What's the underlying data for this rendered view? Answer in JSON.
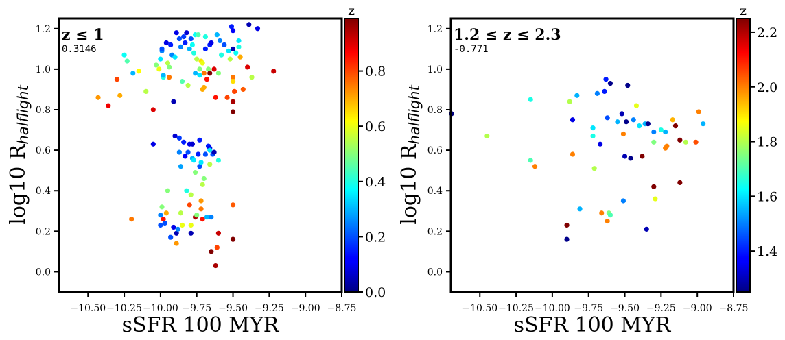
{
  "charts": [
    {
      "type": "scatter",
      "title": "z ≤ 1",
      "annotation": "0.3146",
      "xlabel": "sSFR 100 MYR",
      "ylabel_main": "log10 R",
      "ylabel_sub": "halflight",
      "xlim": [
        -10.7,
        -8.75
      ],
      "ylim": [
        -0.1,
        1.25
      ],
      "xticks": [
        -10.5,
        -10.25,
        -10.0,
        -9.75,
        -9.5,
        -9.25,
        -9.0,
        -8.75
      ],
      "xtick_labels": [
        "−10.50",
        "−10.25",
        "−10.00",
        "−9.75",
        "−9.50",
        "−9.25",
        "−9.00",
        "−8.75"
      ],
      "yticks": [
        0.0,
        0.2,
        0.4,
        0.6,
        0.8,
        1.0,
        1.2
      ],
      "ytick_labels": [
        "0.0",
        "0.2",
        "0.4",
        "0.6",
        "0.8",
        "1.0",
        "1.2"
      ],
      "colorbar": {
        "label": "z",
        "colormap": "jet",
        "range": [
          0.0,
          0.99
        ],
        "ticks": [
          0.0,
          0.2,
          0.4,
          0.6,
          0.8
        ],
        "tick_labels": [
          "0.0",
          "0.2",
          "0.4",
          "0.6",
          "0.8"
        ]
      },
      "points": [
        [
          -10.43,
          0.86,
          0.72
        ],
        [
          -10.36,
          0.82,
          0.88
        ],
        [
          -10.3,
          0.95,
          0.8
        ],
        [
          -10.28,
          0.87,
          0.7
        ],
        [
          -10.25,
          1.07,
          0.38
        ],
        [
          -10.23,
          1.04,
          0.45
        ],
        [
          -10.19,
          0.98,
          0.3
        ],
        [
          -10.15,
          0.99,
          0.62
        ],
        [
          -10.1,
          0.89,
          0.55
        ],
        [
          -10.05,
          0.8,
          0.9
        ],
        [
          -10.03,
          1.02,
          0.5
        ],
        [
          -10.01,
          1.0,
          0.6
        ],
        [
          -10.0,
          1.05,
          0.35
        ],
        [
          -9.99,
          1.09,
          0.25
        ],
        [
          -9.99,
          1.1,
          0.2
        ],
        [
          -9.98,
          0.96,
          0.4
        ],
        [
          -9.98,
          0.97,
          0.3
        ],
        [
          -9.96,
          1.13,
          0.1
        ],
        [
          -9.95,
          1.03,
          0.55
        ],
        [
          -9.94,
          1.01,
          0.5
        ],
        [
          -9.94,
          0.96,
          0.75
        ],
        [
          -9.93,
          1.12,
          0.15
        ],
        [
          -9.92,
          1.07,
          0.25
        ],
        [
          -9.91,
          0.84,
          0.05
        ],
        [
          -9.9,
          1.06,
          0.35
        ],
        [
          -9.89,
          1.18,
          0.1
        ],
        [
          -9.87,
          1.15,
          0.2
        ],
        [
          -9.86,
          1.11,
          0.25
        ],
        [
          -9.85,
          0.94,
          0.45
        ],
        [
          -9.84,
          1.16,
          0.18
        ],
        [
          -9.83,
          1.13,
          0.15
        ],
        [
          -9.82,
          1.18,
          0.08
        ],
        [
          -9.81,
          0.92,
          0.55
        ],
        [
          -9.8,
          1.1,
          0.3
        ],
        [
          -9.79,
          1.15,
          0.2
        ],
        [
          -9.78,
          1.12,
          0.38
        ],
        [
          -9.77,
          1.08,
          0.4
        ],
        [
          -9.76,
          1.17,
          0.38
        ],
        [
          -9.76,
          0.98,
          0.3
        ],
        [
          -9.75,
          1.05,
          0.55
        ],
        [
          -9.74,
          1.17,
          0.45
        ],
        [
          -9.73,
          1.0,
          0.5
        ],
        [
          -9.73,
          0.97,
          0.35
        ],
        [
          -9.72,
          1.04,
          0.65
        ],
        [
          -9.71,
          1.03,
          0.6
        ],
        [
          -9.71,
          0.9,
          0.7
        ],
        [
          -9.7,
          0.98,
          0.75
        ],
        [
          -9.7,
          0.91,
          0.7
        ],
        [
          -9.69,
          1.1,
          0.15
        ],
        [
          -9.69,
          1.16,
          0.4
        ],
        [
          -9.68,
          0.95,
          0.85
        ],
        [
          -9.67,
          1.0,
          0.5
        ],
        [
          -9.66,
          1.12,
          0.15
        ],
        [
          -9.66,
          0.98,
          0.99
        ],
        [
          -9.65,
          1.13,
          0.1
        ],
        [
          -9.63,
          1.0,
          0.9
        ],
        [
          -9.62,
          0.86,
          0.85
        ],
        [
          -9.61,
          1.17,
          0.3
        ],
        [
          -9.6,
          0.98,
          0.5
        ],
        [
          -9.59,
          1.14,
          0.25
        ],
        [
          -9.58,
          1.07,
          0.4
        ],
        [
          -9.56,
          1.12,
          0.2
        ],
        [
          -9.54,
          0.86,
          0.8
        ],
        [
          -9.53,
          1.09,
          0.35
        ],
        [
          -9.52,
          1.05,
          0.55
        ],
        [
          -9.51,
          1.21,
          0.15
        ],
        [
          -9.5,
          1.19,
          0.12
        ],
        [
          -9.5,
          1.1,
          0.05
        ],
        [
          -9.5,
          0.96,
          0.75
        ],
        [
          -9.5,
          0.94,
          0.65
        ],
        [
          -9.5,
          0.84,
          0.95
        ],
        [
          -9.5,
          0.79,
          0.99
        ],
        [
          -9.49,
          0.89,
          0.8
        ],
        [
          -9.48,
          1.08,
          0.38
        ],
        [
          -9.46,
          1.11,
          0.4
        ],
        [
          -9.46,
          1.14,
          0.35
        ],
        [
          -9.45,
          1.06,
          0.7
        ],
        [
          -9.43,
          0.9,
          0.78
        ],
        [
          -9.4,
          1.01,
          0.9
        ],
        [
          -9.39,
          1.22,
          0.05
        ],
        [
          -9.37,
          0.96,
          0.55
        ],
        [
          -9.33,
          1.2,
          0.1
        ],
        [
          -9.22,
          0.99,
          0.92
        ],
        [
          -10.2,
          0.26,
          0.75
        ],
        [
          -10.05,
          0.63,
          0.1
        ],
        [
          -10.0,
          0.23,
          0.2
        ],
        [
          -10.0,
          0.28,
          0.25
        ],
        [
          -9.99,
          0.32,
          0.5
        ],
        [
          -9.98,
          0.26,
          0.85
        ],
        [
          -9.97,
          0.24,
          0.2
        ],
        [
          -9.96,
          0.29,
          0.7
        ],
        [
          -9.95,
          0.4,
          0.5
        ],
        [
          -9.93,
          0.17,
          0.2
        ],
        [
          -9.91,
          0.22,
          0.1
        ],
        [
          -9.9,
          0.67,
          0.08
        ],
        [
          -9.89,
          0.19,
          0.05
        ],
        [
          -9.89,
          0.14,
          0.72
        ],
        [
          -9.88,
          0.21,
          0.25
        ],
        [
          -9.87,
          0.66,
          0.18
        ],
        [
          -9.87,
          0.59,
          0.25
        ],
        [
          -9.86,
          0.52,
          0.28
        ],
        [
          -9.86,
          0.29,
          0.55
        ],
        [
          -9.85,
          0.23,
          0.6
        ],
        [
          -9.84,
          0.64,
          0.15
        ],
        [
          -9.83,
          0.57,
          0.12
        ],
        [
          -9.82,
          0.4,
          0.4
        ],
        [
          -9.81,
          0.59,
          0.2
        ],
        [
          -9.8,
          0.63,
          0.1
        ],
        [
          -9.8,
          0.33,
          0.8
        ],
        [
          -9.79,
          0.38,
          0.55
        ],
        [
          -9.79,
          0.23,
          0.6
        ],
        [
          -9.79,
          0.19,
          0.05
        ],
        [
          -9.78,
          0.63,
          0.08
        ],
        [
          -9.78,
          0.56,
          0.3
        ],
        [
          -9.77,
          0.55,
          0.35
        ],
        [
          -9.76,
          0.49,
          0.5
        ],
        [
          -9.76,
          0.27,
          0.95
        ],
        [
          -9.75,
          0.28,
          0.5
        ],
        [
          -9.74,
          0.58,
          0.15
        ],
        [
          -9.73,
          0.65,
          0.15
        ],
        [
          -9.73,
          0.52,
          0.2
        ],
        [
          -9.72,
          0.54,
          0.35
        ],
        [
          -9.72,
          0.35,
          0.72
        ],
        [
          -9.72,
          0.31,
          0.75
        ],
        [
          -9.71,
          0.26,
          0.85
        ],
        [
          -9.71,
          0.43,
          0.55
        ],
        [
          -9.7,
          0.46,
          0.5
        ],
        [
          -9.69,
          0.58,
          0.2
        ],
        [
          -9.68,
          0.27,
          0.3
        ],
        [
          -9.67,
          0.62,
          0.1
        ],
        [
          -9.67,
          0.62,
          0.15
        ],
        [
          -9.66,
          0.61,
          0.1
        ],
        [
          -9.66,
          0.53,
          0.55
        ],
        [
          -9.66,
          0.6,
          0.35
        ],
        [
          -9.65,
          0.1,
          0.99
        ],
        [
          -9.65,
          0.27,
          0.25
        ],
        [
          -9.64,
          0.58,
          0.2
        ],
        [
          -9.63,
          0.59,
          0.05
        ],
        [
          -9.62,
          0.03,
          0.95
        ],
        [
          -9.61,
          0.12,
          0.8
        ],
        [
          -9.6,
          0.19,
          0.92
        ],
        [
          -9.6,
          0.55,
          0.4
        ],
        [
          -9.5,
          0.33,
          0.78
        ],
        [
          -9.5,
          0.16,
          0.99
        ]
      ]
    },
    {
      "type": "scatter",
      "title": "1.2 ≤ z ≤ 2.3",
      "annotation": "-0.771",
      "xlabel": "sSFR 100 MYR",
      "ylabel_main": "log10 R",
      "ylabel_sub": "halflight",
      "xlim": [
        -10.7,
        -8.75
      ],
      "ylim": [
        -0.1,
        1.25
      ],
      "xticks": [
        -10.5,
        -10.25,
        -10.0,
        -9.75,
        -9.5,
        -9.25,
        -9.0,
        -8.75
      ],
      "xtick_labels": [
        "−10.50",
        "−10.25",
        "−10.00",
        "−9.75",
        "−9.50",
        "−9.25",
        "−9.00",
        "−8.75"
      ],
      "yticks": [
        0.0,
        0.2,
        0.4,
        0.6,
        0.8,
        1.0,
        1.2
      ],
      "ytick_labels": [
        "0.0",
        "0.2",
        "0.4",
        "0.6",
        "0.8",
        "1.0",
        "1.2"
      ],
      "colorbar": {
        "label": "z",
        "colormap": "jet",
        "range": [
          1.25,
          2.25
        ],
        "ticks": [
          1.4,
          1.6,
          1.8,
          2.0,
          2.2
        ],
        "tick_labels": [
          "1.4",
          "1.6",
          "1.8",
          "2.0",
          "2.2"
        ]
      },
      "points": [
        [
          -10.7,
          0.78,
          1.25
        ],
        [
          -10.45,
          0.67,
          1.8
        ],
        [
          -10.15,
          0.85,
          1.65
        ],
        [
          -10.15,
          0.55,
          1.7
        ],
        [
          -10.12,
          0.52,
          2.0
        ],
        [
          -9.9,
          0.16,
          1.26
        ],
        [
          -9.9,
          0.23,
          2.25
        ],
        [
          -9.88,
          0.84,
          1.8
        ],
        [
          -9.86,
          0.58,
          2.0
        ],
        [
          -9.86,
          0.75,
          1.35
        ],
        [
          -9.83,
          0.87,
          1.55
        ],
        [
          -9.81,
          0.31,
          1.55
        ],
        [
          -9.72,
          0.71,
          1.6
        ],
        [
          -9.72,
          0.67,
          1.65
        ],
        [
          -9.71,
          0.51,
          1.8
        ],
        [
          -9.69,
          0.88,
          1.5
        ],
        [
          -9.67,
          0.63,
          1.35
        ],
        [
          -9.66,
          0.29,
          2.0
        ],
        [
          -9.64,
          0.89,
          1.4
        ],
        [
          -9.63,
          0.95,
          1.4
        ],
        [
          -9.62,
          0.76,
          1.45
        ],
        [
          -9.62,
          0.25,
          2.0
        ],
        [
          -9.61,
          0.29,
          1.75
        ],
        [
          -9.6,
          0.93,
          1.26
        ],
        [
          -9.6,
          0.28,
          1.7
        ],
        [
          -9.55,
          0.74,
          1.55
        ],
        [
          -9.52,
          0.78,
          1.3
        ],
        [
          -9.51,
          0.35,
          1.5
        ],
        [
          -9.51,
          0.68,
          2.0
        ],
        [
          -9.5,
          0.57,
          1.3
        ],
        [
          -9.49,
          0.74,
          1.26
        ],
        [
          -9.48,
          0.92,
          1.26
        ],
        [
          -9.46,
          0.56,
          1.26
        ],
        [
          -9.44,
          0.75,
          1.5
        ],
        [
          -9.42,
          0.82,
          1.85
        ],
        [
          -9.4,
          0.72,
          1.6
        ],
        [
          -9.38,
          0.57,
          2.25
        ],
        [
          -9.36,
          0.73,
          1.55
        ],
        [
          -9.35,
          0.21,
          1.3
        ],
        [
          -9.34,
          0.73,
          1.26
        ],
        [
          -9.3,
          0.64,
          1.75
        ],
        [
          -9.3,
          0.69,
          1.5
        ],
        [
          -9.3,
          0.42,
          2.25
        ],
        [
          -9.29,
          0.36,
          1.85
        ],
        [
          -9.25,
          0.7,
          1.65
        ],
        [
          -9.22,
          0.61,
          2.0
        ],
        [
          -9.22,
          0.69,
          1.55
        ],
        [
          -9.21,
          0.62,
          2.0
        ],
        [
          -9.17,
          0.75,
          1.95
        ],
        [
          -9.15,
          0.72,
          2.25
        ],
        [
          -9.12,
          0.65,
          2.25
        ],
        [
          -9.12,
          0.44,
          2.25
        ],
        [
          -9.08,
          0.64,
          1.8
        ],
        [
          -9.01,
          0.64,
          2.05
        ],
        [
          -8.99,
          0.79,
          2.0
        ],
        [
          -8.96,
          0.73,
          1.55
        ]
      ]
    }
  ]
}
